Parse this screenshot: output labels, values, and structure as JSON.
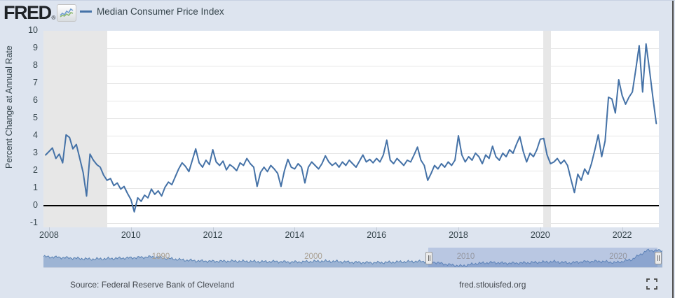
{
  "header": {
    "logo_text": "FRED",
    "logo_mark": "®",
    "legend": {
      "series_label": "Median Consumer Price Index",
      "series_color": "#4572a7"
    }
  },
  "chart_data": {
    "type": "line",
    "title": "Median Consumer Price Index",
    "ylabel": "Percent Change at Annual Rate",
    "series_name": "Median Consumer Price Index",
    "line_color": "#4572a7",
    "ylim": [
      -1,
      10
    ],
    "y_ticks": [
      -1,
      0,
      1,
      2,
      3,
      4,
      5,
      6,
      7,
      8,
      9,
      10
    ],
    "x_ticks": [
      2008,
      2010,
      2012,
      2014,
      2016,
      2018,
      2020,
      2022
    ],
    "x_range_years": [
      2007.8636,
      2022.897
    ],
    "grid": "horizontal-only",
    "legend_position": "top-left",
    "frequency": "monthly",
    "start_month": "2007-12",
    "values": [
      2.9,
      3.1,
      3.3,
      2.7,
      2.95,
      2.45,
      4.05,
      3.9,
      3.25,
      3.5,
      2.7,
      1.9,
      0.55,
      2.95,
      2.6,
      2.35,
      2.2,
      1.75,
      1.45,
      1.55,
      1.15,
      1.3,
      0.95,
      1.1,
      0.7,
      0.35,
      -0.35,
      0.45,
      0.25,
      0.6,
      0.45,
      0.95,
      0.65,
      0.85,
      0.55,
      1.05,
      1.35,
      1.2,
      1.65,
      2.1,
      2.45,
      2.25,
      1.95,
      2.6,
      3.25,
      2.45,
      2.2,
      2.6,
      2.35,
      3.2,
      2.5,
      2.3,
      2.55,
      2.05,
      2.35,
      2.2,
      2.0,
      2.45,
      2.3,
      2.7,
      2.4,
      2.2,
      1.1,
      1.9,
      2.2,
      1.95,
      2.3,
      2.1,
      1.85,
      1.1,
      2.0,
      2.65,
      2.2,
      2.1,
      2.4,
      2.2,
      1.3,
      2.2,
      2.5,
      2.3,
      2.1,
      2.4,
      2.85,
      2.5,
      2.3,
      2.45,
      2.2,
      2.5,
      2.3,
      2.6,
      2.4,
      2.2,
      2.55,
      2.9,
      2.5,
      2.65,
      2.45,
      2.7,
      2.5,
      2.9,
      3.75,
      2.6,
      2.4,
      2.7,
      2.5,
      2.3,
      2.6,
      2.5,
      2.9,
      3.35,
      2.6,
      2.3,
      1.45,
      1.85,
      2.3,
      2.1,
      2.4,
      2.2,
      2.5,
      2.3,
      2.6,
      4.0,
      2.9,
      2.5,
      2.8,
      2.6,
      3.0,
      2.8,
      2.4,
      2.9,
      2.7,
      3.4,
      2.8,
      2.6,
      3.0,
      2.8,
      3.2,
      3.0,
      3.5,
      3.95,
      3.1,
      2.5,
      3.0,
      2.8,
      3.2,
      3.8,
      3.85,
      2.9,
      2.4,
      2.5,
      2.7,
      2.4,
      2.6,
      2.3,
      1.5,
      0.75,
      1.8,
      1.45,
      2.1,
      1.8,
      2.4,
      3.2,
      4.05,
      2.8,
      3.7,
      6.2,
      6.1,
      5.3,
      7.2,
      6.3,
      5.8,
      6.2,
      6.5,
      7.8,
      9.15,
      6.5,
      9.25,
      7.8,
      6.2,
      4.7
    ],
    "recessions": [
      {
        "start": 2007.8636,
        "end": 2009.42
      },
      {
        "start": 2020.07,
        "end": 2020.26
      }
    ],
    "navigator": {
      "start_year": 1982.3,
      "end_year": 2022.9,
      "selection": [
        2007.55,
        2022.58
      ],
      "year_labels": [
        1990,
        2000,
        2010,
        2020
      ],
      "yearly_values": [
        5.4,
        5.0,
        4.6,
        4.1,
        4.3,
        4.6,
        4.9,
        5.3,
        4.5,
        3.7,
        3.2,
        3.0,
        3.1,
        3.0,
        2.8,
        2.9,
        2.6,
        2.8,
        3.1,
        2.9,
        2.5,
        2.3,
        2.4,
        2.7,
        2.9,
        2.9,
        1.5,
        0.6,
        1.9,
        2.4,
        2.0,
        2.2,
        2.5,
        2.8,
        2.2,
        2.9,
        3.0,
        2.3,
        3.9,
        8.5
      ]
    }
  },
  "footer": {
    "source": "Source: Federal Reserve Bank of Cleveland",
    "site": "fred.stlouisfed.org"
  }
}
